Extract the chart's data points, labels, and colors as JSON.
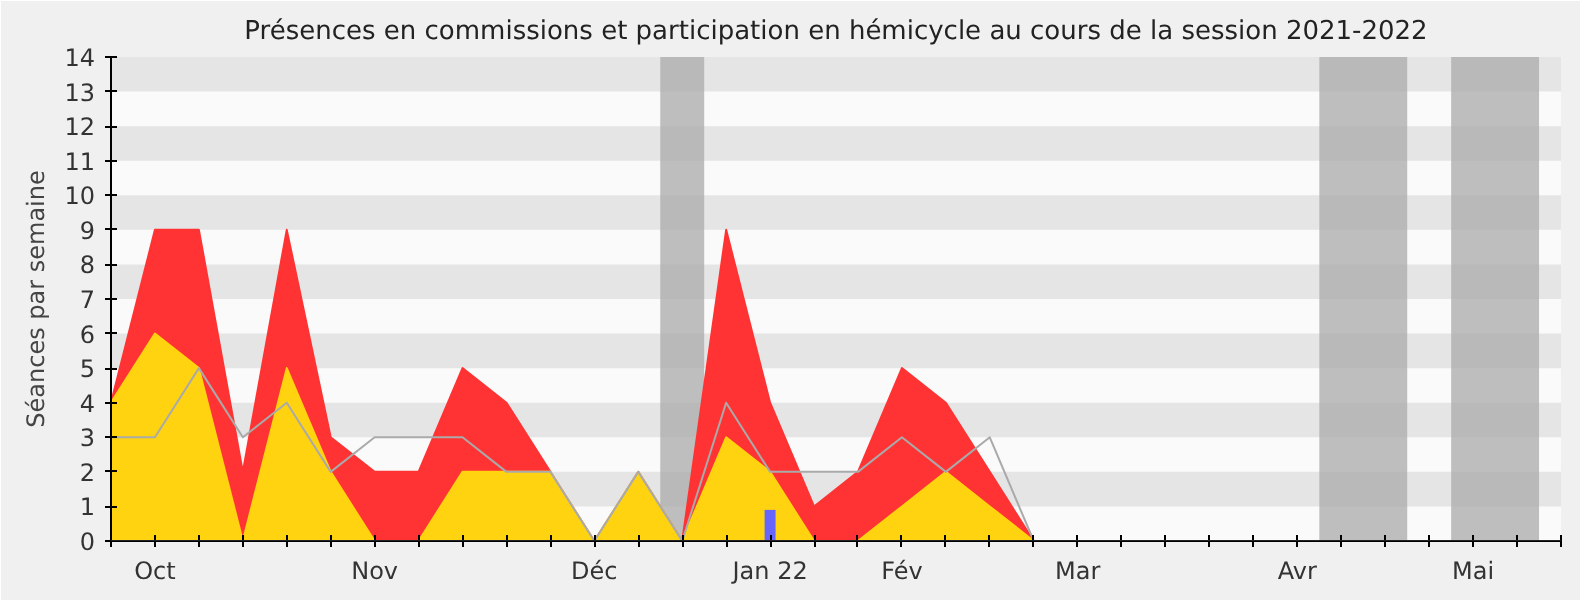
{
  "chart_data": {
    "type": "area",
    "title": "Présences en commissions et participation en hémicycle au cours de la session 2021-2022",
    "ylabel": "Séances par semaine",
    "categories": [
      null,
      "Oct",
      null,
      null,
      null,
      null,
      "Nov",
      null,
      null,
      null,
      null,
      "Déc",
      null,
      null,
      null,
      "Jan 22",
      null,
      null,
      "Fév",
      null,
      null,
      null,
      "Mar",
      null,
      null,
      null,
      null,
      "Avr",
      null,
      null,
      null,
      "Mai",
      null,
      null
    ],
    "series": [
      {
        "color": "#ff3333",
        "values": [
          4,
          9,
          9,
          2,
          9,
          3,
          2,
          2,
          5,
          4,
          2,
          0,
          2,
          0,
          9,
          4,
          1,
          2,
          5,
          4,
          2,
          0,
          0,
          0,
          0,
          0,
          0,
          0,
          0,
          0,
          0,
          0,
          0,
          0
        ]
      },
      {
        "color": "#ffd30f",
        "values": [
          4,
          6,
          5,
          0,
          5,
          2,
          0,
          0,
          2,
          2,
          2,
          0,
          2,
          0,
          3,
          2,
          0,
          0,
          1,
          2,
          1,
          0,
          0,
          0,
          0,
          0,
          0,
          0,
          0,
          0,
          0,
          0,
          0,
          0
        ]
      },
      {
        "type": "line",
        "color": "#aaaaaa",
        "values": [
          3,
          3,
          5,
          3,
          4,
          2,
          3,
          3,
          3,
          2,
          2,
          0,
          2,
          0,
          4,
          2,
          2,
          2,
          3,
          2,
          3,
          0,
          0,
          0,
          0,
          0,
          0,
          0,
          0,
          0,
          0,
          0,
          0,
          0
        ]
      },
      {
        "type": "bar",
        "color": "#6666ff",
        "values": [
          null,
          null,
          null,
          null,
          null,
          null,
          null,
          null,
          null,
          null,
          null,
          null,
          null,
          null,
          null,
          0.9,
          null,
          null,
          null,
          null,
          null,
          null,
          null,
          null,
          null,
          null,
          null,
          null,
          null,
          null,
          null,
          null,
          null,
          null
        ]
      }
    ],
    "ylim": [
      0,
      14
    ],
    "yticks": [
      0,
      1,
      2,
      3,
      4,
      5,
      6,
      7,
      8,
      9,
      10,
      11,
      12,
      13,
      14
    ],
    "grid": false
  }
}
